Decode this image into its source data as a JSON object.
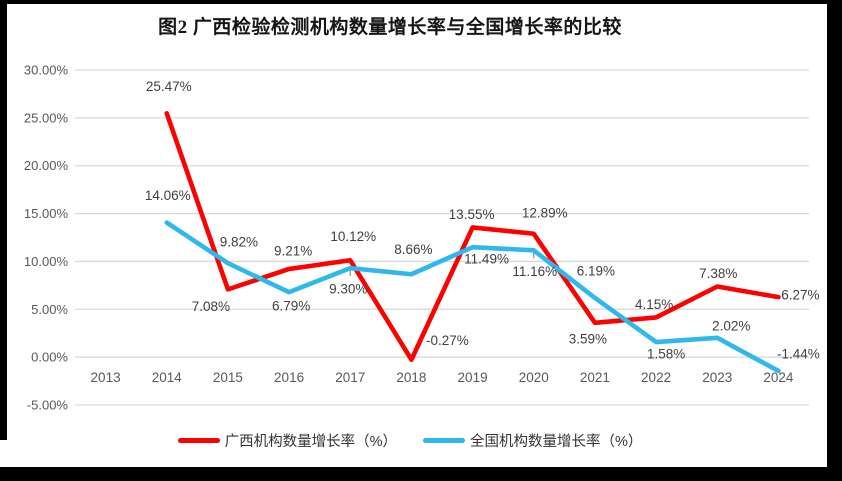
{
  "title": "图2 广西检验检测机构数量增长率与全国增长率的比较",
  "colors": {
    "guangxi_line": "#FE0000",
    "national_line": "#2FB8EC",
    "gridline": "#D9D9D9",
    "axis_text": "#595959",
    "data_label_text": "#3F3F3F",
    "leader_tick": "#A6A6A6",
    "frame": "#000000",
    "background": "#FFFFFF"
  },
  "chart_data": {
    "type": "line",
    "title": "图2 广西检验检测机构数量增长率与全国增长率的比较",
    "categories": [
      "2013",
      "2014",
      "2015",
      "2016",
      "2017",
      "2018",
      "2019",
      "2020",
      "2021",
      "2022",
      "2023",
      "2024"
    ],
    "series": [
      {
        "name": "广西机构数量增长率（%）",
        "color_key": "guangxi_line",
        "values": [
          null,
          25.47,
          7.08,
          9.21,
          10.12,
          -0.27,
          13.55,
          12.89,
          3.59,
          4.15,
          7.38,
          6.27
        ],
        "labels": [
          null,
          "25.47%",
          "7.08%",
          "9.21%",
          "10.12%",
          "-0.27%",
          "13.55%",
          "12.89%",
          "3.59%",
          "4.15%",
          "7.38%",
          "6.27%"
        ],
        "label_offsets": [
          null,
          [
            2,
            -27
          ],
          [
            -17,
            17
          ],
          [
            4,
            -18
          ],
          [
            3,
            -24
          ],
          [
            36,
            -19
          ],
          [
            -1,
            -13
          ],
          [
            11,
            -21
          ],
          [
            -7,
            16
          ],
          [
            -2,
            -13
          ],
          [
            1,
            -13
          ],
          [
            22,
            -2
          ]
        ]
      },
      {
        "name": "全国机构数量增长率（%）",
        "color_key": "national_line",
        "values": [
          null,
          14.06,
          9.82,
          6.79,
          9.3,
          8.66,
          11.49,
          11.16,
          6.19,
          1.58,
          2.02,
          -1.44
        ],
        "labels": [
          null,
          "14.06%",
          "9.82%",
          "6.79%",
          "9.30%",
          "8.66%",
          "11.49%",
          "11.16%",
          "6.19%",
          "1.58%",
          "2.02%",
          "-1.44%"
        ],
        "label_offsets": [
          null,
          [
            1,
            -27
          ],
          [
            11,
            -21
          ],
          [
            2,
            14
          ],
          [
            -2,
            21
          ],
          [
            2,
            -25
          ],
          [
            14,
            12
          ],
          [
            1,
            21
          ],
          [
            1,
            -27
          ],
          [
            10,
            12
          ],
          [
            14,
            -12
          ],
          [
            20,
            -17
          ]
        ]
      }
    ],
    "xlabel": "",
    "ylabel": "",
    "ylim": [
      -5,
      30
    ],
    "ytick_step": 5,
    "ytick_labels": [
      "30.00%",
      "25.00%",
      "20.00%",
      "15.00%",
      "10.00%",
      "5.00%",
      "0.00%",
      "-5.00%"
    ],
    "grid": true,
    "legend_position": "bottom",
    "leader_ticks": [
      {
        "series": 1,
        "index": 4
      },
      {
        "series": 1,
        "index": 7
      }
    ]
  }
}
